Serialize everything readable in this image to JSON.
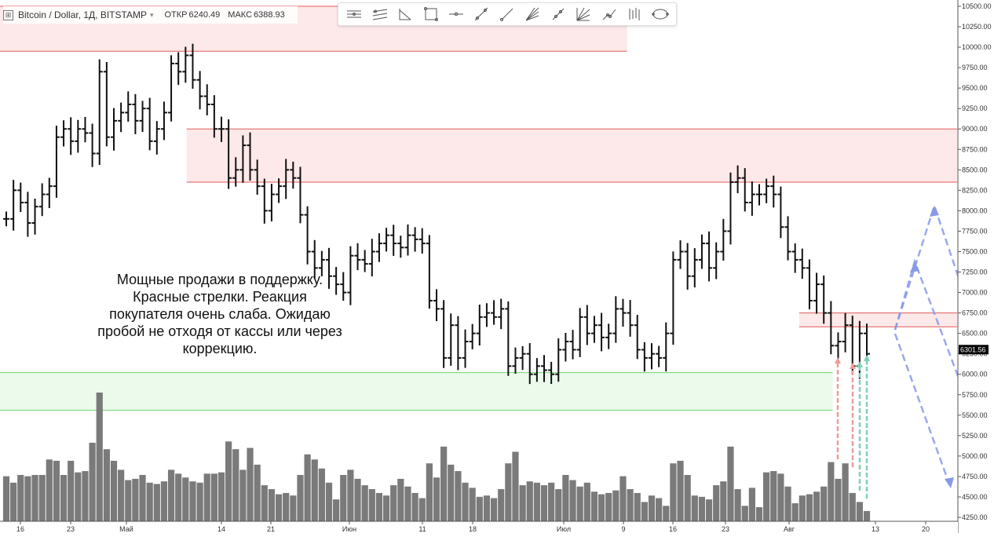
{
  "header": {
    "symbol": "Bitcoin / Dollar, 1Д, BITSTAMP",
    "open_label": "ОТКР",
    "open_value": "6240.49",
    "high_label": "МАКС",
    "high_value": "6388.93"
  },
  "toolbar": {
    "tools": [
      "horizontal-lines-icon",
      "parallel-lines-icon",
      "angle-icon",
      "rectangle-icon",
      "horizontal-ray-icon",
      "trend-line-icon",
      "line-icon",
      "fan-icon",
      "ray-icon",
      "gann-icon",
      "curve-icon",
      "bars-pattern-icon",
      "ellipse-icon"
    ]
  },
  "annotation": {
    "text": "Мощные продажи в поддержку.\nКрасные стрелки. Реакция\nпокупателя очень слаба. Ожидаю\nпробой не отходя от кассы или через\nкоррекцию."
  },
  "colors": {
    "resistance_fill": "#fde4e4",
    "resistance_line": "#e05a5a",
    "support_fill": "#e6f9e6",
    "support_line": "#6fd46f",
    "bar": "#111111",
    "volume": "#7a7a7a",
    "projection": "#8899e6",
    "arrow_red": "#f09a9a",
    "arrow_green": "#7fd0b0"
  },
  "chart_data": {
    "type": "ohlc",
    "ylim": [
      4000,
      10500
    ],
    "price_ticks": [
      "10500.00",
      "10250.00",
      "10000.00",
      "9750.00",
      "9500.00",
      "9250.00",
      "9000.00",
      "8750.00",
      "8500.00",
      "8250.00",
      "8000.00",
      "7750.00",
      "7500.00",
      "7250.00",
      "7000.00",
      "6750.00",
      "6500.00",
      "6250.00",
      "6000.00",
      "5750.00",
      "5500.00",
      "5250.00",
      "5000.00",
      "4750.00",
      "4500.00",
      "4250.00"
    ],
    "x_ticks": [
      "16",
      "23",
      "Май",
      "14",
      "21",
      "Июн",
      "11",
      "18",
      "Июл",
      "9",
      "16",
      "23",
      "Авг",
      "13",
      "20"
    ],
    "last_price": "6301.56",
    "zones": [
      {
        "name": "resistance-top",
        "from": 9950,
        "to": 10500,
        "x0": 0,
        "x1": 0.655
      },
      {
        "name": "resistance-mid",
        "from": 8350,
        "to": 9000,
        "x0": 0.195,
        "x1": 1
      },
      {
        "name": "resistance-low",
        "from": 6580,
        "to": 6750,
        "x0": 0.835,
        "x1": 1
      },
      {
        "name": "support",
        "from": 5560,
        "to": 6020,
        "x0": 0,
        "x1": 0.87
      }
    ],
    "closes": [
      7900,
      8250,
      8100,
      7850,
      8050,
      8200,
      8300,
      8900,
      9000,
      8850,
      9000,
      8950,
      8700,
      9700,
      8900,
      9100,
      9200,
      9300,
      9100,
      9250,
      8850,
      9000,
      9200,
      9800,
      9700,
      9900,
      9600,
      9400,
      9300,
      9000,
      9000,
      8400,
      8500,
      8800,
      8500,
      8300,
      8000,
      8200,
      8300,
      8500,
      8400,
      7950,
      7500,
      7300,
      7400,
      7200,
      7100,
      7000,
      7450,
      7400,
      7350,
      7500,
      7600,
      7700,
      7600,
      7550,
      7700,
      7650,
      7600,
      6900,
      6800,
      6200,
      6600,
      6200,
      6400,
      6500,
      6700,
      6750,
      6700,
      6800,
      6100,
      6200,
      6250,
      6000,
      6100,
      6050,
      6000,
      6300,
      6400,
      6300,
      6700,
      6500,
      6600,
      6450,
      6500,
      6800,
      6750,
      6600,
      6300,
      6200,
      6250,
      6200,
      6500,
      7400,
      7500,
      7200,
      7400,
      7600,
      7300,
      7500,
      7750,
      8350,
      8400,
      8100,
      8200,
      8200,
      8300,
      8200,
      7800,
      7500,
      7400,
      7300,
      6900,
      7100,
      6750,
      6350,
      6400,
      6600,
      6100,
      6500,
      6250
    ],
    "volumes": [
      0.35,
      0.3,
      0.36,
      0.35,
      0.36,
      0.36,
      0.48,
      0.47,
      0.36,
      0.47,
      0.38,
      0.39,
      0.61,
      1.0,
      0.56,
      0.47,
      0.4,
      0.32,
      0.33,
      0.36,
      0.3,
      0.29,
      0.31,
      0.4,
      0.37,
      0.34,
      0.31,
      0.3,
      0.37,
      0.37,
      0.38,
      0.62,
      0.56,
      0.4,
      0.57,
      0.44,
      0.28,
      0.25,
      0.21,
      0.22,
      0.2,
      0.36,
      0.52,
      0.48,
      0.41,
      0.3,
      0.17,
      0.36,
      0.4,
      0.33,
      0.28,
      0.25,
      0.22,
      0.2,
      0.28,
      0.33,
      0.27,
      0.22,
      0.18,
      0.45,
      0.34,
      0.58,
      0.44,
      0.39,
      0.3,
      0.26,
      0.19,
      0.2,
      0.18,
      0.25,
      0.45,
      0.54,
      0.28,
      0.31,
      0.3,
      0.28,
      0.3,
      0.25,
      0.36,
      0.32,
      0.27,
      0.3,
      0.23,
      0.21,
      0.22,
      0.24,
      0.35,
      0.25,
      0.22,
      0.15,
      0.2,
      0.18,
      0.12,
      0.45,
      0.47,
      0.36,
      0.2,
      0.19,
      0.17,
      0.28,
      0.31,
      0.58,
      0.25,
      0.12,
      0.26,
      0.11,
      0.38,
      0.39,
      0.37,
      0.27,
      0.14,
      0.2,
      0.21,
      0.23,
      0.27,
      0.46,
      0.33,
      0.45,
      0.22,
      0.15,
      0.08
    ]
  }
}
